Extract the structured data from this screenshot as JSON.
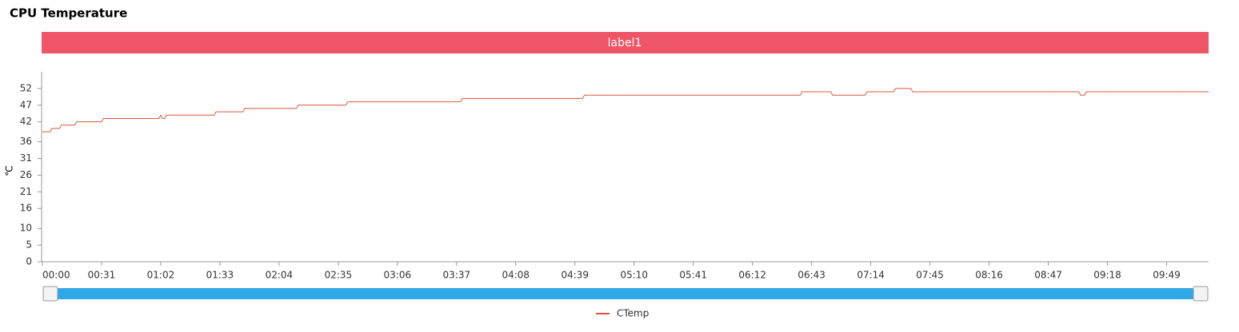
{
  "chart_data": {
    "type": "line",
    "title": "CPU Temperature",
    "banner": "label1",
    "y_label": "℃",
    "x": [
      0,
      4,
      5,
      9,
      10,
      17,
      18,
      31,
      32,
      61,
      62,
      63,
      64,
      65,
      90,
      91,
      105,
      106,
      133,
      134,
      159,
      160,
      219,
      220,
      283,
      284,
      397,
      398,
      413,
      414,
      431,
      432,
      446,
      447,
      455,
      456,
      543,
      544,
      546,
      547,
      611
    ],
    "series": [
      {
        "name": "CTemp",
        "color": "#d9573f",
        "values": [
          39,
          39,
          40,
          40,
          41,
          41,
          42,
          42,
          43,
          43,
          44,
          43,
          43,
          44,
          44,
          45,
          45,
          46,
          46,
          47,
          47,
          48,
          48,
          49,
          49,
          50,
          50,
          51,
          51,
          50,
          50,
          51,
          51,
          52,
          52,
          51,
          51,
          50,
          50,
          51,
          51
        ]
      }
    ],
    "xlim": [
      0,
      611
    ],
    "xticks": [
      {
        "value": 0,
        "label": "00:00"
      },
      {
        "value": 31,
        "label": "00:31"
      },
      {
        "value": 62,
        "label": "01:02"
      },
      {
        "value": 93,
        "label": "01:33"
      },
      {
        "value": 124,
        "label": "02:04"
      },
      {
        "value": 155,
        "label": "02:35"
      },
      {
        "value": 186,
        "label": "03:06"
      },
      {
        "value": 217,
        "label": "03:37"
      },
      {
        "value": 248,
        "label": "04:08"
      },
      {
        "value": 279,
        "label": "04:39"
      },
      {
        "value": 310,
        "label": "05:10"
      },
      {
        "value": 341,
        "label": "05:41"
      },
      {
        "value": 372,
        "label": "06:12"
      },
      {
        "value": 403,
        "label": "06:43"
      },
      {
        "value": 434,
        "label": "07:14"
      },
      {
        "value": 465,
        "label": "07:45"
      },
      {
        "value": 496,
        "label": "08:16"
      },
      {
        "value": 527,
        "label": "08:47"
      },
      {
        "value": 558,
        "label": "09:18"
      },
      {
        "value": 589,
        "label": "09:49"
      }
    ],
    "ylim": [
      0,
      57
    ],
    "yticks": [
      0,
      5,
      10,
      16,
      21,
      26,
      31,
      36,
      42,
      47,
      52
    ],
    "grid": false,
    "legend": "bottom"
  }
}
